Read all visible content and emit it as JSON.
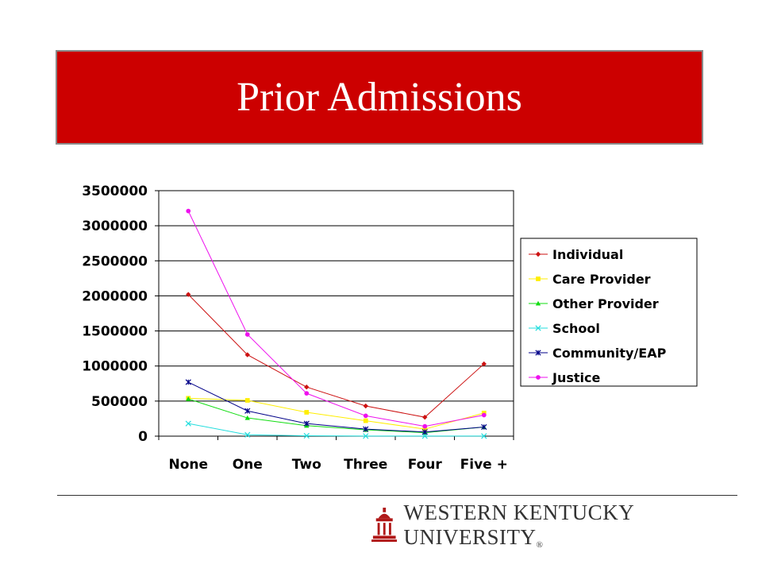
{
  "slide": {
    "title": "Prior Admissions"
  },
  "branding": {
    "logo_text": "WESTERN KENTUCKY UNIVERSITY",
    "registered_mark": "®",
    "brand_color": "#cc0000"
  },
  "chart_data": {
    "type": "line",
    "categories": [
      "None",
      "One",
      "Two",
      "Three",
      "Four",
      "Five +"
    ],
    "ylim": [
      0,
      3500000
    ],
    "yticks": [
      0,
      500000,
      1000000,
      1500000,
      2000000,
      2500000,
      3000000,
      3500000
    ],
    "grid": true,
    "legend_position": "right",
    "series": [
      {
        "name": "Individual",
        "color": "#cc1111",
        "marker": "diamond",
        "values": [
          2020000,
          1160000,
          700000,
          430000,
          270000,
          1030000
        ]
      },
      {
        "name": "Care Provider",
        "color": "#ffee00",
        "marker": "square",
        "values": [
          540000,
          510000,
          340000,
          220000,
          100000,
          330000
        ]
      },
      {
        "name": "Other Provider",
        "color": "#11dd11",
        "marker": "triangle",
        "values": [
          530000,
          260000,
          150000,
          90000,
          50000,
          130000
        ]
      },
      {
        "name": "School",
        "color": "#22dddd",
        "marker": "x",
        "values": [
          180000,
          20000,
          5000,
          2000,
          1000,
          1000
        ]
      },
      {
        "name": "Community/EAP",
        "color": "#000088",
        "marker": "star",
        "values": [
          770000,
          360000,
          180000,
          100000,
          60000,
          130000
        ]
      },
      {
        "name": "Justice",
        "color": "#ee11ee",
        "marker": "circle",
        "values": [
          3210000,
          1450000,
          610000,
          290000,
          140000,
          300000
        ]
      }
    ]
  }
}
